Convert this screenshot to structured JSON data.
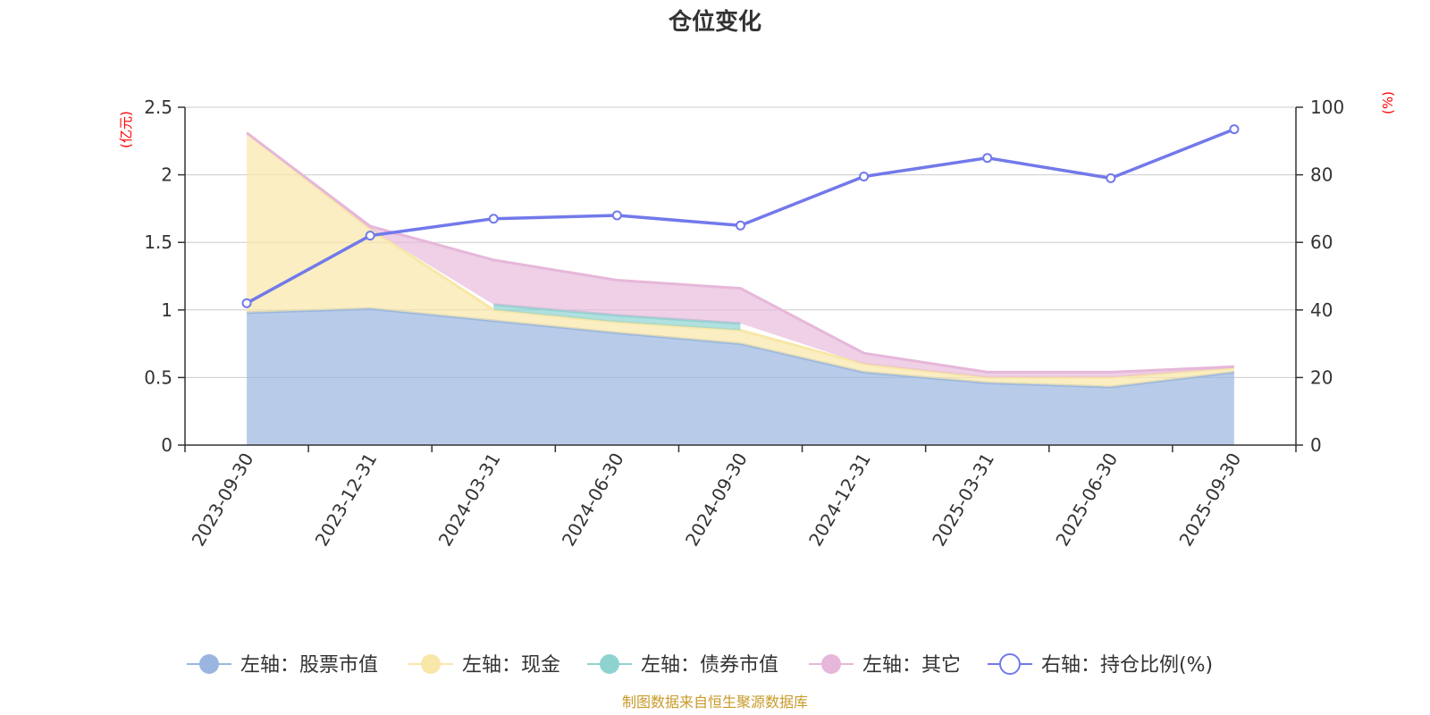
{
  "colors": {
    "stock": "#9ab6e0",
    "cash": "#f8e7a8",
    "bond": "#8fd3d1",
    "other": "#e6b7da",
    "ratio": "#7279ea",
    "grid": "#cccccc",
    "axis": "#333333",
    "unit": "#ff0000",
    "source": "#c89a28"
  },
  "chart_data": {
    "type": "area",
    "title": "仓位变化",
    "left_axis_unit": "(亿元)",
    "right_axis_unit": "(%)",
    "categories": [
      "2023-09-30",
      "2023-12-31",
      "2024-03-31",
      "2024-06-30",
      "2024-09-30",
      "2024-12-31",
      "2025-03-31",
      "2025-06-30",
      "2025-09-30"
    ],
    "left_ylim": [
      0,
      2.5
    ],
    "left_ticks": [
      "0",
      "0.5",
      "1",
      "1.5",
      "2",
      "2.5"
    ],
    "left_tick_values": [
      0,
      0.5,
      1,
      1.5,
      2,
      2.5
    ],
    "right_ylim": [
      0,
      100
    ],
    "right_ticks": [
      "0",
      "20",
      "40",
      "60",
      "80",
      "100"
    ],
    "right_tick_values": [
      0,
      20,
      40,
      60,
      80,
      100
    ],
    "stacked_series": [
      {
        "key": "stock",
        "name": "左轴：股票市值",
        "values": [
          0.98,
          1.01,
          0.92,
          0.83,
          0.75,
          0.54,
          0.46,
          0.43,
          0.54
        ]
      },
      {
        "key": "cash",
        "name": "左轴：现金",
        "values": [
          1.33,
          0.59,
          0.08,
          0.08,
          0.1,
          0.06,
          0.04,
          0.07,
          0.03
        ]
      },
      {
        "key": "bond",
        "name": "左轴：债券市值",
        "values": [
          null,
          null,
          0.04,
          0.05,
          0.05,
          null,
          null,
          null,
          null
        ]
      },
      {
        "key": "other",
        "name": "左轴：其它",
        "values": [
          0,
          0.02,
          0.33,
          0.26,
          0.26,
          0.08,
          0.04,
          0.04,
          0.01
        ]
      }
    ],
    "ratio_series": {
      "key": "ratio",
      "name": "右轴：持仓比例(%)",
      "axis": "right",
      "values": [
        42,
        62,
        67,
        68,
        65,
        79.5,
        85,
        79,
        93.5
      ]
    },
    "legend": [
      "左轴：股票市值",
      "左轴：现金",
      "左轴：债券市值",
      "左轴：其它",
      "右轴：持仓比例(%)"
    ],
    "legend_position": "bottom",
    "grid": true
  },
  "source_text": "制图数据来自恒生聚源数据库"
}
